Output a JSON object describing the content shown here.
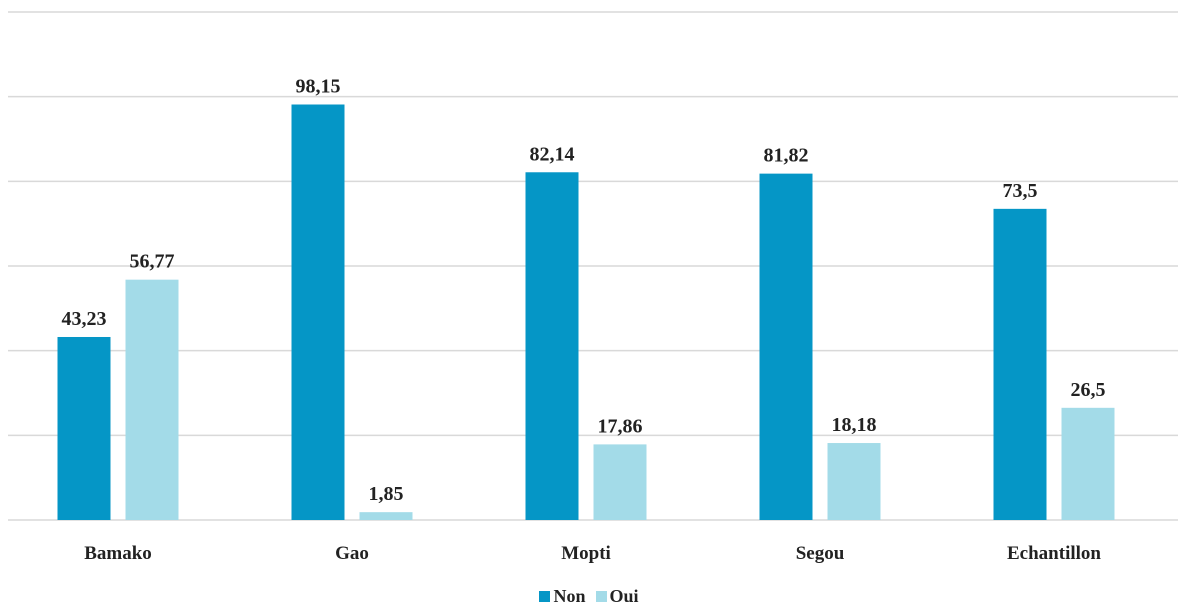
{
  "chart_data": {
    "type": "bar",
    "categories": [
      "Bamako",
      "Gao",
      "Mopti",
      "Segou",
      "Echantillon"
    ],
    "series": [
      {
        "name": "Non",
        "values": [
          43.23,
          98.15,
          82.14,
          81.82,
          73.5
        ],
        "labels": [
          "43,23",
          "98,15",
          "82,14",
          "81,82",
          "73,5"
        ],
        "color": "#0596c6"
      },
      {
        "name": "Oui",
        "values": [
          56.77,
          1.85,
          17.86,
          18.18,
          26.5
        ],
        "labels": [
          "56,77",
          "1,85",
          "17,86",
          "18,18",
          "26,5"
        ],
        "color": "#a3dbe8"
      }
    ],
    "ylim": [
      0,
      120
    ],
    "grid": true,
    "legend_position": "bottom"
  }
}
